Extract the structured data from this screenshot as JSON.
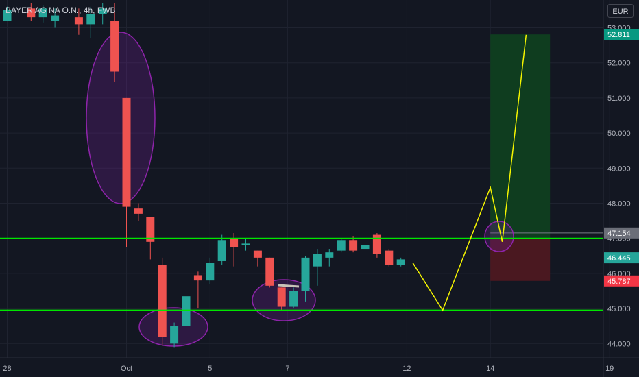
{
  "header": {
    "symbol": "BAYER AG NA O.N., 4h, FWB",
    "currency": "EUR"
  },
  "colors": {
    "background": "#131722",
    "grid": "#1f2330",
    "axis_text": "#b2b5be",
    "up": "#26a69a",
    "down": "#ef5350",
    "level_line": "#00e600",
    "projection": "#f5f500",
    "target_zone": "#0f3d1f",
    "stop_zone": "#4a1820",
    "ellipse": "#7b1fa2"
  },
  "chart_data": {
    "type": "candlestick",
    "title": "",
    "currency": "EUR",
    "y_ticks": [
      "44.000",
      "45.000",
      "46.000",
      "47.000",
      "48.000",
      "49.000",
      "50.000",
      "51.000",
      "52.000",
      "53.000"
    ],
    "ylim": [
      43.5,
      53.7
    ],
    "x_ticks": [
      {
        "label": "28",
        "slot": -10
      },
      {
        "label": "Oct",
        "slot": 0
      },
      {
        "label": "5",
        "slot": 7
      },
      {
        "label": "7",
        "slot": 13.5
      },
      {
        "label": "12",
        "slot": 23.5
      },
      {
        "label": "14",
        "slot": 30.5
      },
      {
        "label": "19",
        "slot": 40.5
      }
    ],
    "candles": [
      {
        "slot": -11,
        "open": 53.55,
        "high": 53.75,
        "low": 53.25,
        "close": 53.25
      },
      {
        "slot": -10,
        "open": 53.2,
        "high": 53.6,
        "low": 53.2,
        "close": 53.5
      },
      {
        "slot": -8,
        "open": 53.55,
        "high": 53.7,
        "low": 53.2,
        "close": 53.3
      },
      {
        "slot": -7,
        "open": 53.3,
        "high": 53.65,
        "low": 53.15,
        "close": 53.55
      },
      {
        "slot": -6,
        "open": 53.2,
        "high": 53.55,
        "low": 53.0,
        "close": 53.35
      },
      {
        "slot": -4,
        "open": 53.3,
        "high": 53.55,
        "low": 52.8,
        "close": 53.1
      },
      {
        "slot": -3,
        "open": 53.1,
        "high": 53.6,
        "low": 52.7,
        "close": 53.4
      },
      {
        "slot": -2,
        "open": 53.4,
        "high": 53.7,
        "low": 53.1,
        "close": 53.55
      },
      {
        "slot": -1,
        "open": 53.2,
        "high": 53.7,
        "low": 51.45,
        "close": 51.75
      },
      {
        "slot": 0,
        "open": 51.0,
        "high": 51.0,
        "low": 46.75,
        "close": 47.9
      },
      {
        "slot": 1,
        "open": 47.85,
        "high": 48.0,
        "low": 47.5,
        "close": 47.7
      },
      {
        "slot": 2,
        "open": 47.6,
        "high": 47.6,
        "low": 46.4,
        "close": 46.9
      },
      {
        "slot": 3,
        "open": 46.25,
        "high": 46.45,
        "low": 43.95,
        "close": 44.2
      },
      {
        "slot": 4,
        "open": 44.0,
        "high": 44.6,
        "low": 43.9,
        "close": 44.5
      },
      {
        "slot": 5,
        "open": 44.5,
        "high": 45.35,
        "low": 44.35,
        "close": 45.35
      },
      {
        "slot": 6,
        "open": 45.95,
        "high": 46.05,
        "low": 45.0,
        "close": 45.8
      },
      {
        "slot": 7,
        "open": 45.8,
        "high": 46.45,
        "low": 45.7,
        "close": 46.3
      },
      {
        "slot": 8,
        "open": 46.35,
        "high": 47.1,
        "low": 46.25,
        "close": 46.95
      },
      {
        "slot": 9,
        "open": 47.0,
        "high": 47.15,
        "low": 46.2,
        "close": 46.75
      },
      {
        "slot": 10,
        "open": 46.8,
        "high": 47.0,
        "low": 46.65,
        "close": 46.85
      },
      {
        "slot": 11,
        "open": 46.65,
        "high": 46.65,
        "low": 46.2,
        "close": 46.45
      },
      {
        "slot": 12,
        "open": 46.45,
        "high": 46.45,
        "low": 45.6,
        "close": 45.65
      },
      {
        "slot": 13,
        "open": 45.6,
        "high": 45.6,
        "low": 44.95,
        "close": 45.05
      },
      {
        "slot": 14,
        "open": 45.05,
        "high": 45.6,
        "low": 45.0,
        "close": 45.5
      },
      {
        "slot": 15,
        "open": 45.5,
        "high": 46.5,
        "low": 45.2,
        "close": 46.45
      },
      {
        "slot": 16,
        "open": 46.2,
        "high": 46.7,
        "low": 45.65,
        "close": 46.55
      },
      {
        "slot": 17,
        "open": 46.45,
        "high": 46.7,
        "low": 46.2,
        "close": 46.6
      },
      {
        "slot": 18,
        "open": 46.65,
        "high": 47.0,
        "low": 46.6,
        "close": 46.95
      },
      {
        "slot": 19,
        "open": 46.95,
        "high": 47.05,
        "low": 46.6,
        "close": 46.65
      },
      {
        "slot": 20,
        "open": 46.7,
        "high": 46.85,
        "low": 46.6,
        "close": 46.8
      },
      {
        "slot": 21,
        "open": 47.1,
        "high": 47.15,
        "low": 46.45,
        "close": 46.55
      },
      {
        "slot": 22,
        "open": 46.65,
        "high": 46.7,
        "low": 46.2,
        "close": 46.25
      },
      {
        "slot": 23,
        "open": 46.25,
        "high": 46.45,
        "low": 46.2,
        "close": 46.4
      }
    ],
    "horizontal_levels": [
      {
        "price": 47.0
      },
      {
        "price": 44.95
      }
    ],
    "projection_path": [
      {
        "slot": 24,
        "price": 46.3
      },
      {
        "slot": 26.5,
        "price": 44.95
      },
      {
        "slot": 30.5,
        "price": 48.45
      },
      {
        "slot": 31.5,
        "price": 46.9
      },
      {
        "slot": 33.5,
        "price": 52.8
      }
    ],
    "target_zone": {
      "slot_from": 30.5,
      "slot_to": 35.5,
      "price_from": 47.0,
      "price_to": 52.811
    },
    "stop_zone": {
      "slot_from": 30.5,
      "slot_to": 35.5,
      "price_from": 45.787,
      "price_to": 47.0
    },
    "price_labels": [
      {
        "text": "52.811",
        "price": 52.811,
        "color": "#089981"
      },
      {
        "text": "47.154",
        "price": 47.154,
        "color": "#6b6e78"
      },
      {
        "text": "46.445",
        "price": 46.445,
        "color": "#26a69a"
      },
      {
        "text": "45.787",
        "price": 45.787,
        "color": "#f23645"
      }
    ]
  }
}
